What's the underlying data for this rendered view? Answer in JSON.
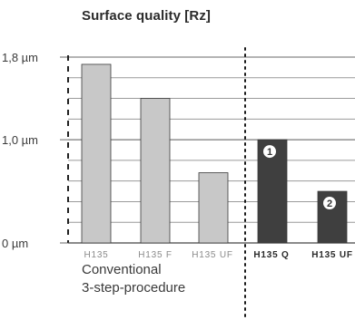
{
  "chart_data": {
    "type": "bar",
    "title": "Surface quality [Rz]",
    "xlabel": "",
    "ylabel": "",
    "y_ticks": [
      {
        "value": 0,
        "label": "0 µm"
      },
      {
        "value": 1.0,
        "label": "1,0 µm"
      },
      {
        "value": 1.8,
        "label": "1,8 µm"
      }
    ],
    "ylim": [
      0,
      1.8
    ],
    "grid": true,
    "categories": [
      "H135",
      "H135 F",
      "H135 UF",
      "H135 Q",
      "H135 UF"
    ],
    "values": [
      1.73,
      1.4,
      0.68,
      1.0,
      0.5
    ],
    "colors": [
      "#c8c8c8",
      "#c8c8c8",
      "#c8c8c8",
      "#3f3f3f",
      "#3f3f3f"
    ],
    "label_colors": [
      "#8a8a8a",
      "#8a8a8a",
      "#8a8a8a",
      "#2a2a2a",
      "#2a2a2a"
    ],
    "label_bold": [
      false,
      false,
      false,
      true,
      true
    ],
    "markers": [
      {
        "bar_index": 3,
        "text": "1"
      },
      {
        "bar_index": 4,
        "text": "2"
      }
    ],
    "group_caption": [
      "Conventional",
      "3-step-procedure"
    ]
  }
}
